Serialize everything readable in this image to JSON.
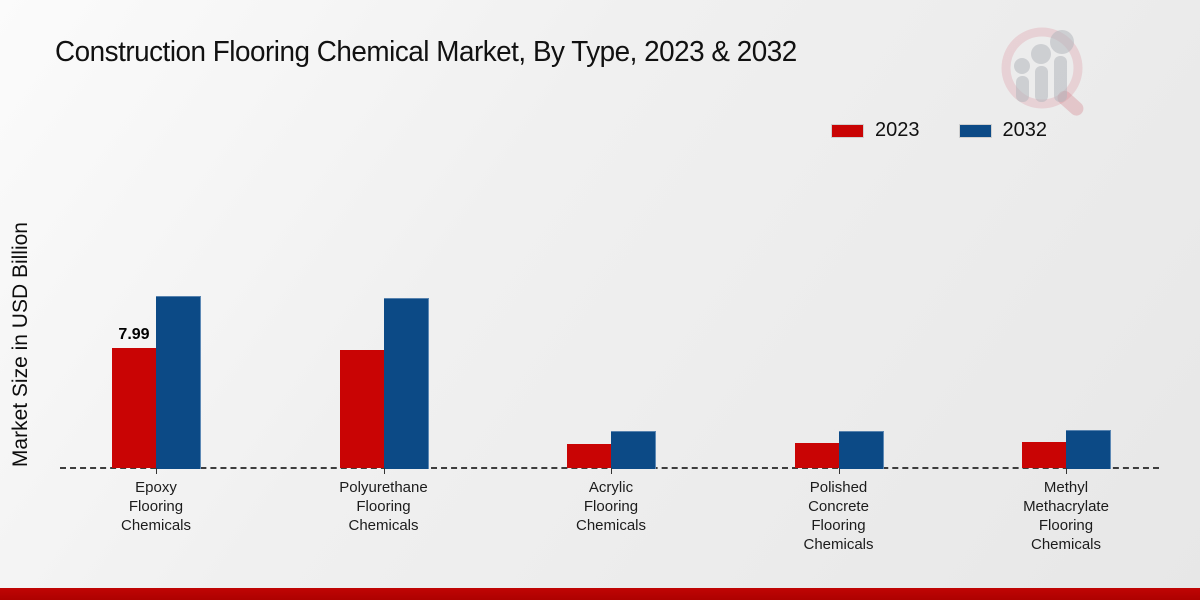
{
  "title": "Construction Flooring Chemical Market, By Type, 2023 & 2032",
  "ylabel": "Market Size in USD Billion",
  "legend": {
    "items": [
      {
        "label": "2023",
        "color": "#c90404"
      },
      {
        "label": "2032",
        "color": "#0c4a86"
      }
    ]
  },
  "footer": {
    "color": "#b80200"
  },
  "watermark": {
    "name": "market-research-magnifier-logo"
  },
  "chart_data": {
    "type": "bar",
    "title": "Construction Flooring Chemical Market, By Type, 2023 & 2032",
    "xlabel": "",
    "ylabel": "Market Size in USD Billion",
    "categories": [
      "Epoxy Flooring Chemicals",
      "Polyurethane Flooring Chemicals",
      "Acrylic Flooring Chemicals",
      "Polished Concrete Flooring Chemicals",
      "Methyl Methacrylate Flooring Chemicals"
    ],
    "category_label_lines": [
      "Epoxy\nFlooring\nChemicals",
      "Polyurethane\nFlooring\nChemicals",
      "Acrylic\nFlooring\nChemicals",
      "Polished\nConcrete\nFlooring\nChemicals",
      "Methyl\nMethacrylate\nFlooring\nChemicals"
    ],
    "series": [
      {
        "name": "2023",
        "color": "#c90404",
        "values": [
          7.99,
          7.9,
          1.6,
          1.65,
          1.75
        ]
      },
      {
        "name": "2032",
        "color": "#0c4a86",
        "values": [
          11.5,
          11.35,
          2.5,
          2.45,
          2.55
        ]
      }
    ],
    "annotations": [
      {
        "series_index": 0,
        "category_index": 0,
        "text": "7.99"
      }
    ],
    "ylim": [
      0,
      13
    ],
    "y_axis_ticks_visible": false,
    "grid": false,
    "baseline_style": "dashed",
    "legend_position": "top-right"
  }
}
